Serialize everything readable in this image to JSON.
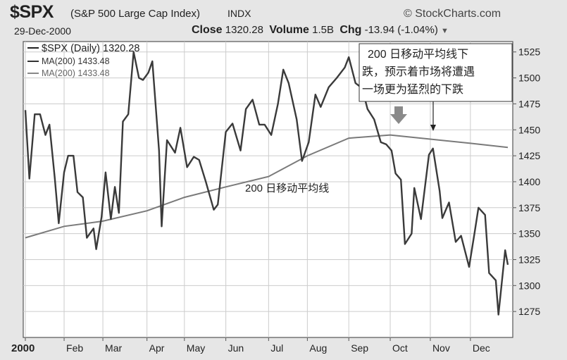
{
  "header": {
    "symbol": "$SPX",
    "index_name": "(S&P 500 Large Cap Index)",
    "exchange": "INDX",
    "brand": "StockCharts.com",
    "date": "29-Dec-2000",
    "close_label": "Close",
    "close_value": "1320.28",
    "volume_label": "Volume",
    "volume_value": "1.5B",
    "chg_label": "Chg",
    "chg_value": "-13.94 (-1.04%)"
  },
  "legend": {
    "price_entry": "$SPX (Daily) 1320.28",
    "ma_entry_1": "MA(200) 1433.48",
    "ma_entry_2": "MA(200) 1433.48"
  },
  "annotations": {
    "box_line_1": "200 日移动平均线下",
    "box_line_2": "跌，预示着市场将遭遇",
    "box_line_3": "一场更为猛烈的下跌",
    "ma_label": "200 日移动平均线"
  },
  "colors": {
    "price_line": "#3a3a3a",
    "ma_line": "#7a7a7a",
    "plot_bg": "#ffffff",
    "grid": "#cccccc",
    "arrow": "#8a8a8a"
  },
  "chart_data": {
    "type": "line",
    "ylim": [
      1250,
      1535
    ],
    "yticks": [
      1275,
      1300,
      1325,
      1350,
      1375,
      1400,
      1425,
      1450,
      1475,
      1500,
      1525
    ],
    "xlabels": [
      "2000",
      "Feb",
      "Mar",
      "Apr",
      "May",
      "Jun",
      "Jul",
      "Aug",
      "Sep",
      "Oct",
      "Nov",
      "Dec"
    ],
    "xlabel_dates": [
      "2000-01-03",
      "2000-02-01",
      "2000-03-01",
      "2000-04-03",
      "2000-05-01",
      "2000-06-01",
      "2000-07-03",
      "2000-08-01",
      "2000-09-01",
      "2000-10-02",
      "2000-11-01",
      "2000-12-01"
    ],
    "grid": true,
    "series": [
      {
        "name": "$SPX (Daily)",
        "x": [
          "2000-01-03",
          "2000-01-06",
          "2000-01-10",
          "2000-01-14",
          "2000-01-18",
          "2000-01-21",
          "2000-01-25",
          "2000-01-28",
          "2000-02-01",
          "2000-02-04",
          "2000-02-08",
          "2000-02-11",
          "2000-02-15",
          "2000-02-18",
          "2000-02-23",
          "2000-02-25",
          "2000-02-29",
          "2000-03-03",
          "2000-03-07",
          "2000-03-10",
          "2000-03-13",
          "2000-03-16",
          "2000-03-20",
          "2000-03-24",
          "2000-03-28",
          "2000-03-31",
          "2000-04-04",
          "2000-04-07",
          "2000-04-12",
          "2000-04-14",
          "2000-04-18",
          "2000-04-24",
          "2000-04-28",
          "2000-05-03",
          "2000-05-08",
          "2000-05-12",
          "2000-05-17",
          "2000-05-23",
          "2000-05-26",
          "2000-06-01",
          "2000-06-06",
          "2000-06-12",
          "2000-06-16",
          "2000-06-21",
          "2000-06-26",
          "2000-06-30",
          "2000-07-05",
          "2000-07-10",
          "2000-07-14",
          "2000-07-18",
          "2000-07-24",
          "2000-07-28",
          "2000-08-02",
          "2000-08-07",
          "2000-08-11",
          "2000-08-17",
          "2000-08-23",
          "2000-08-29",
          "2000-09-01",
          "2000-09-06",
          "2000-09-11",
          "2000-09-15",
          "2000-09-20",
          "2000-09-25",
          "2000-09-29",
          "2000-10-03",
          "2000-10-06",
          "2000-10-10",
          "2000-10-13",
          "2000-10-18",
          "2000-10-20",
          "2000-10-25",
          "2000-10-31",
          "2000-11-03",
          "2000-11-08",
          "2000-11-10",
          "2000-11-15",
          "2000-11-20",
          "2000-11-24",
          "2000-11-30",
          "2000-12-04",
          "2000-12-07",
          "2000-12-12",
          "2000-12-15",
          "2000-12-20",
          "2000-12-22",
          "2000-12-27",
          "2000-12-29"
        ],
        "values": [
          1469,
          1403,
          1465,
          1465,
          1445,
          1455,
          1404,
          1360,
          1409,
          1425,
          1425,
          1390,
          1385,
          1346,
          1355,
          1335,
          1366,
          1409,
          1364,
          1395,
          1370,
          1458,
          1465,
          1525,
          1500,
          1498,
          1505,
          1516,
          1430,
          1357,
          1440,
          1428,
          1452,
          1414,
          1424,
          1421,
          1400,
          1373,
          1378,
          1448,
          1456,
          1430,
          1470,
          1479,
          1455,
          1455,
          1445,
          1475,
          1508,
          1495,
          1460,
          1420,
          1438,
          1484,
          1472,
          1491,
          1500,
          1510,
          1520,
          1495,
          1490,
          1470,
          1460,
          1438,
          1436,
          1430,
          1408,
          1402,
          1340,
          1350,
          1394,
          1364,
          1426,
          1432,
          1391,
          1365,
          1380,
          1342,
          1348,
          1318,
          1350,
          1375,
          1368,
          1312,
          1305,
          1272,
          1334,
          1320
        ]
      },
      {
        "name": "MA(200)",
        "x": [
          "2000-01-03",
          "2000-02-01",
          "2000-03-01",
          "2000-04-03",
          "2000-05-01",
          "2000-06-01",
          "2000-07-03",
          "2000-08-01",
          "2000-09-01",
          "2000-10-02",
          "2000-11-01",
          "2000-12-01",
          "2000-12-29"
        ],
        "values": [
          1346,
          1357,
          1362,
          1372,
          1385,
          1395,
          1405,
          1425,
          1442,
          1445,
          1441,
          1437,
          1433
        ]
      }
    ]
  }
}
